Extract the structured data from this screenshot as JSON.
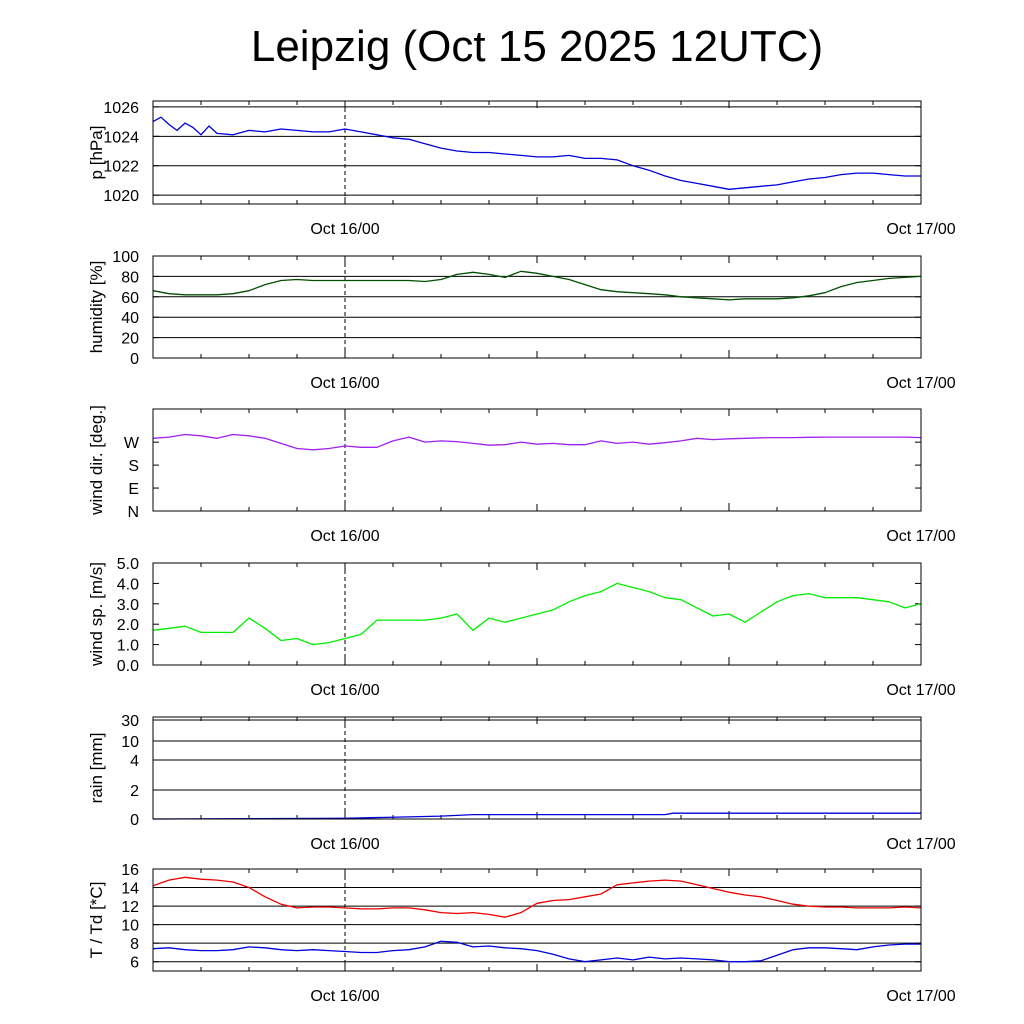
{
  "title": "Leipzig (Oct 15 2025 12UTC)",
  "chart_data": [
    {
      "type": "line",
      "id": "pressure",
      "ylabel": "p [hPa]",
      "ylim": [
        1019.4,
        1026.4
      ],
      "yticks": [
        1020,
        1022,
        1024,
        1026
      ],
      "ytick_labels": [
        "1020",
        "1022",
        "1024",
        "1026"
      ],
      "grid": true,
      "x_range_hours": [
        12,
        60
      ],
      "xtick_labels": [
        "Oct 16/00",
        "Oct 17/00"
      ],
      "series": [
        {
          "color": "#0000dd",
          "x": [
            12,
            12.5,
            13,
            13.5,
            14,
            14.5,
            15,
            15.5,
            16,
            17,
            18,
            19,
            20,
            21,
            22,
            23,
            24,
            25,
            26,
            27,
            28,
            29,
            30,
            31,
            32,
            33,
            34,
            35,
            36,
            37,
            38,
            39,
            40,
            41,
            42,
            43,
            44,
            45,
            46,
            47,
            48,
            49,
            50,
            51,
            52,
            53,
            54,
            55,
            56,
            57,
            58,
            59,
            60
          ],
          "y": [
            1025.0,
            1025.3,
            1024.8,
            1024.4,
            1024.9,
            1024.6,
            1024.1,
            1024.7,
            1024.2,
            1024.1,
            1024.4,
            1024.3,
            1024.5,
            1024.4,
            1024.3,
            1024.3,
            1024.5,
            1024.3,
            1024.1,
            1023.9,
            1023.8,
            1023.5,
            1023.2,
            1023.0,
            1022.9,
            1022.9,
            1022.8,
            1022.7,
            1022.6,
            1022.6,
            1022.7,
            1022.5,
            1022.5,
            1022.4,
            1022.0,
            1021.7,
            1021.3,
            1021.0,
            1020.8,
            1020.6,
            1020.4,
            1020.5,
            1020.6,
            1020.7,
            1020.9,
            1021.1,
            1021.2,
            1021.4,
            1021.5,
            1021.5,
            1021.4,
            1021.3,
            1021.3
          ]
        }
      ]
    },
    {
      "type": "line",
      "id": "humidity",
      "ylabel": "humidity [%]",
      "ylim": [
        0,
        100
      ],
      "yticks": [
        0,
        20,
        40,
        60,
        80,
        100
      ],
      "ytick_labels": [
        "0",
        "20",
        "40",
        "60",
        "80",
        "100"
      ],
      "grid": true,
      "x_range_hours": [
        12,
        60
      ],
      "xtick_labels": [
        "Oct 16/00",
        "Oct 17/00"
      ],
      "series": [
        {
          "color": "#005000",
          "x": [
            12,
            13,
            14,
            15,
            16,
            17,
            18,
            19,
            20,
            21,
            22,
            23,
            24,
            25,
            26,
            27,
            28,
            29,
            30,
            31,
            32,
            33,
            34,
            35,
            36,
            37,
            38,
            39,
            40,
            41,
            42,
            43,
            44,
            45,
            46,
            47,
            48,
            49,
            50,
            51,
            52,
            53,
            54,
            55,
            56,
            57,
            58,
            59,
            60
          ],
          "y": [
            66,
            63,
            62,
            62,
            62,
            63,
            66,
            72,
            76,
            77,
            76,
            76,
            76,
            76,
            76,
            76,
            76,
            75,
            77,
            82,
            84,
            82,
            79,
            85,
            83,
            80,
            77,
            72,
            67,
            65,
            64,
            63,
            62,
            60,
            59,
            58,
            57,
            58,
            58,
            58,
            59,
            61,
            64,
            70,
            74,
            76,
            78,
            79,
            80
          ]
        }
      ]
    },
    {
      "type": "line",
      "id": "wind_direction",
      "ylabel": "wind dir. [deg.]",
      "ylim": [
        0,
        400
      ],
      "yticks": [
        0,
        90,
        180,
        270
      ],
      "ytick_labels": [
        "N",
        "E",
        "S",
        "W"
      ],
      "grid": false,
      "x_range_hours": [
        12,
        60
      ],
      "xtick_labels": [
        "Oct 16/00",
        "Oct 17/00"
      ],
      "series": [
        {
          "color": "#a020f0",
          "x": [
            12,
            13,
            14,
            15,
            16,
            17,
            18,
            19,
            20,
            21,
            22,
            23,
            24,
            25,
            26,
            27,
            28,
            29,
            30,
            31,
            32,
            33,
            34,
            35,
            36,
            37,
            38,
            39,
            40,
            41,
            42,
            43,
            44,
            45,
            46,
            47,
            48,
            49,
            50,
            51,
            52,
            53,
            54,
            55,
            56,
            57,
            58,
            59,
            60
          ],
          "y": [
            285,
            290,
            300,
            295,
            285,
            300,
            295,
            285,
            265,
            245,
            240,
            245,
            255,
            250,
            250,
            275,
            290,
            270,
            275,
            272,
            265,
            258,
            260,
            270,
            262,
            265,
            260,
            260,
            275,
            265,
            270,
            262,
            268,
            275,
            285,
            280,
            283,
            285,
            287,
            288,
            288,
            289,
            290,
            290,
            290,
            290,
            290,
            290,
            288
          ]
        }
      ]
    },
    {
      "type": "line",
      "id": "wind_speed",
      "ylabel": "wind sp. [m/s]",
      "ylim": [
        0,
        5
      ],
      "yticks": [
        0,
        1,
        2,
        3,
        4,
        5
      ],
      "ytick_labels": [
        "0.0",
        "1.0",
        "2.0",
        "3.0",
        "4.0",
        "5.0"
      ],
      "grid": false,
      "x_range_hours": [
        12,
        60
      ],
      "xtick_labels": [
        "Oct 16/00",
        "Oct 17/00"
      ],
      "series": [
        {
          "color": "#00ee00",
          "x": [
            12,
            13,
            14,
            15,
            16,
            17,
            18,
            19,
            20,
            21,
            22,
            23,
            24,
            25,
            26,
            27,
            28,
            29,
            30,
            31,
            32,
            33,
            34,
            35,
            36,
            37,
            38,
            39,
            40,
            41,
            42,
            43,
            44,
            45,
            46,
            47,
            48,
            49,
            50,
            51,
            52,
            53,
            54,
            55,
            56,
            57,
            58,
            59,
            60
          ],
          "y": [
            1.7,
            1.8,
            1.9,
            1.6,
            1.6,
            1.6,
            2.3,
            1.8,
            1.2,
            1.3,
            1.0,
            1.1,
            1.3,
            1.5,
            2.2,
            2.2,
            2.2,
            2.2,
            2.3,
            2.5,
            1.7,
            2.3,
            2.1,
            2.3,
            2.5,
            2.7,
            3.1,
            3.4,
            3.6,
            4.0,
            3.8,
            3.6,
            3.3,
            3.2,
            2.8,
            2.4,
            2.5,
            2.1,
            2.6,
            3.1,
            3.4,
            3.5,
            3.3,
            3.3,
            3.3,
            3.2,
            3.1,
            2.8,
            3.0
          ]
        }
      ]
    },
    {
      "type": "line",
      "id": "rain",
      "ylabel": "rain [mm]",
      "ylim": [
        0,
        30
      ],
      "yticks": [
        0,
        2,
        4,
        10,
        30
      ],
      "ytick_labels": [
        "0",
        "2",
        "4",
        "10",
        "30"
      ],
      "scale": "nonlinear",
      "grid": true,
      "x_range_hours": [
        12,
        60
      ],
      "xtick_labels": [
        "Oct 16/00",
        "Oct 17/00"
      ],
      "series": [
        {
          "color": "#0000dd",
          "x": [
            12,
            24,
            30,
            32,
            40,
            44,
            44.5,
            52,
            60
          ],
          "y": [
            0,
            0.05,
            0.2,
            0.3,
            0.3,
            0.3,
            0.4,
            0.4,
            0.4
          ]
        }
      ]
    },
    {
      "type": "line",
      "id": "temperature",
      "ylabel": "T / Td [*C]",
      "ylim": [
        5,
        16
      ],
      "yticks": [
        6,
        8,
        10,
        12,
        14,
        16
      ],
      "ytick_labels": [
        "6",
        "8",
        "10",
        "12",
        "14",
        "16"
      ],
      "grid": true,
      "x_range_hours": [
        12,
        60
      ],
      "xtick_labels": [
        "Oct 16/00",
        "Oct 17/00"
      ],
      "series": [
        {
          "color": "#ee0000",
          "x": [
            12,
            13,
            14,
            15,
            16,
            17,
            18,
            19,
            20,
            21,
            22,
            23,
            24,
            25,
            26,
            27,
            28,
            29,
            30,
            31,
            32,
            33,
            34,
            35,
            36,
            37,
            38,
            39,
            40,
            41,
            42,
            43,
            44,
            45,
            46,
            47,
            48,
            49,
            50,
            51,
            52,
            53,
            54,
            55,
            56,
            57,
            58,
            59,
            60
          ],
          "y": [
            14.2,
            14.8,
            15.1,
            14.9,
            14.8,
            14.6,
            14.0,
            13.0,
            12.2,
            11.8,
            11.9,
            11.9,
            11.8,
            11.7,
            11.7,
            11.8,
            11.8,
            11.6,
            11.3,
            11.2,
            11.3,
            11.1,
            10.8,
            11.3,
            12.3,
            12.6,
            12.7,
            13.0,
            13.3,
            14.3,
            14.5,
            14.7,
            14.8,
            14.7,
            14.3,
            13.9,
            13.5,
            13.2,
            13.0,
            12.6,
            12.2,
            12.0,
            11.9,
            11.9,
            11.8,
            11.8,
            11.8,
            11.9,
            11.8
          ]
        },
        {
          "color": "#0000dd",
          "x": [
            12,
            13,
            14,
            15,
            16,
            17,
            18,
            19,
            20,
            21,
            22,
            23,
            24,
            25,
            26,
            27,
            28,
            29,
            30,
            31,
            32,
            33,
            34,
            35,
            36,
            37,
            38,
            39,
            40,
            41,
            42,
            43,
            44,
            45,
            46,
            47,
            48,
            49,
            50,
            51,
            52,
            53,
            54,
            55,
            56,
            57,
            58,
            59,
            60
          ],
          "y": [
            7.4,
            7.5,
            7.3,
            7.2,
            7.2,
            7.3,
            7.6,
            7.5,
            7.3,
            7.2,
            7.3,
            7.2,
            7.1,
            7.0,
            7.0,
            7.2,
            7.3,
            7.6,
            8.2,
            8.1,
            7.6,
            7.7,
            7.5,
            7.4,
            7.2,
            6.8,
            6.3,
            6.0,
            6.2,
            6.4,
            6.2,
            6.5,
            6.3,
            6.4,
            6.3,
            6.2,
            6.0,
            6.0,
            6.1,
            6.7,
            7.3,
            7.5,
            7.5,
            7.4,
            7.3,
            7.6,
            7.8,
            7.9,
            7.9
          ]
        }
      ]
    }
  ]
}
